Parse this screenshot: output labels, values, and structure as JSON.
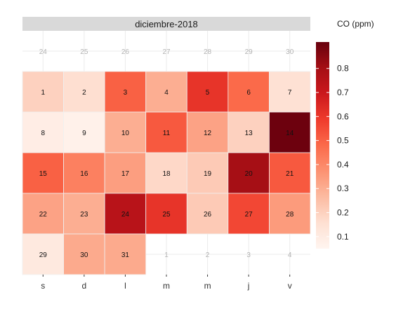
{
  "chart_data": {
    "type": "heatmap",
    "title": "diciembre-2018",
    "weekday_labels": [
      "s",
      "d",
      "l",
      "m",
      "m",
      "j",
      "v"
    ],
    "legend_title": "CO (ppm)",
    "legend_ticks": [
      0.1,
      0.2,
      0.3,
      0.4,
      0.5,
      0.6,
      0.7,
      0.8
    ],
    "value_range": [
      0.05,
      0.91
    ],
    "color_scale": [
      "#fff5f0",
      "#fee0d2",
      "#fcbba1",
      "#fc9272",
      "#fb6a4a",
      "#ef3b2c",
      "#cb181d",
      "#a50f15",
      "#67000d"
    ],
    "grid": [
      [
        {
          "day": "24",
          "value": null
        },
        {
          "day": "25",
          "value": null
        },
        {
          "day": "26",
          "value": null
        },
        {
          "day": "27",
          "value": null
        },
        {
          "day": "28",
          "value": null
        },
        {
          "day": "29",
          "value": null
        },
        {
          "day": "30",
          "value": null
        }
      ],
      [
        {
          "day": "1",
          "value": 0.2
        },
        {
          "day": "2",
          "value": 0.16
        },
        {
          "day": "3",
          "value": 0.5
        },
        {
          "day": "4",
          "value": 0.3
        },
        {
          "day": "5",
          "value": 0.61
        },
        {
          "day": "6",
          "value": 0.48
        },
        {
          "day": "7",
          "value": 0.15
        }
      ],
      [
        {
          "day": "8",
          "value": 0.09
        },
        {
          "day": "9",
          "value": 0.07
        },
        {
          "day": "10",
          "value": 0.3
        },
        {
          "day": "11",
          "value": 0.52
        },
        {
          "day": "12",
          "value": 0.33
        },
        {
          "day": "13",
          "value": 0.2
        },
        {
          "day": "14",
          "value": 0.9
        }
      ],
      [
        {
          "day": "15",
          "value": 0.5
        },
        {
          "day": "16",
          "value": 0.42
        },
        {
          "day": "17",
          "value": 0.34
        },
        {
          "day": "18",
          "value": 0.18
        },
        {
          "day": "19",
          "value": 0.22
        },
        {
          "day": "20",
          "value": 0.8
        },
        {
          "day": "21",
          "value": 0.52
        }
      ],
      [
        {
          "day": "22",
          "value": 0.33
        },
        {
          "day": "23",
          "value": 0.3
        },
        {
          "day": "24",
          "value": 0.75
        },
        {
          "day": "25",
          "value": 0.61
        },
        {
          "day": "26",
          "value": 0.22
        },
        {
          "day": "27",
          "value": 0.56
        },
        {
          "day": "28",
          "value": 0.35
        }
      ],
      [
        {
          "day": "29",
          "value": 0.11
        },
        {
          "day": "30",
          "value": 0.31
        },
        {
          "day": "31",
          "value": 0.31
        },
        {
          "day": "1",
          "value": null
        },
        {
          "day": "2",
          "value": null
        },
        {
          "day": "3",
          "value": null
        },
        {
          "day": "4",
          "value": null
        }
      ]
    ]
  }
}
